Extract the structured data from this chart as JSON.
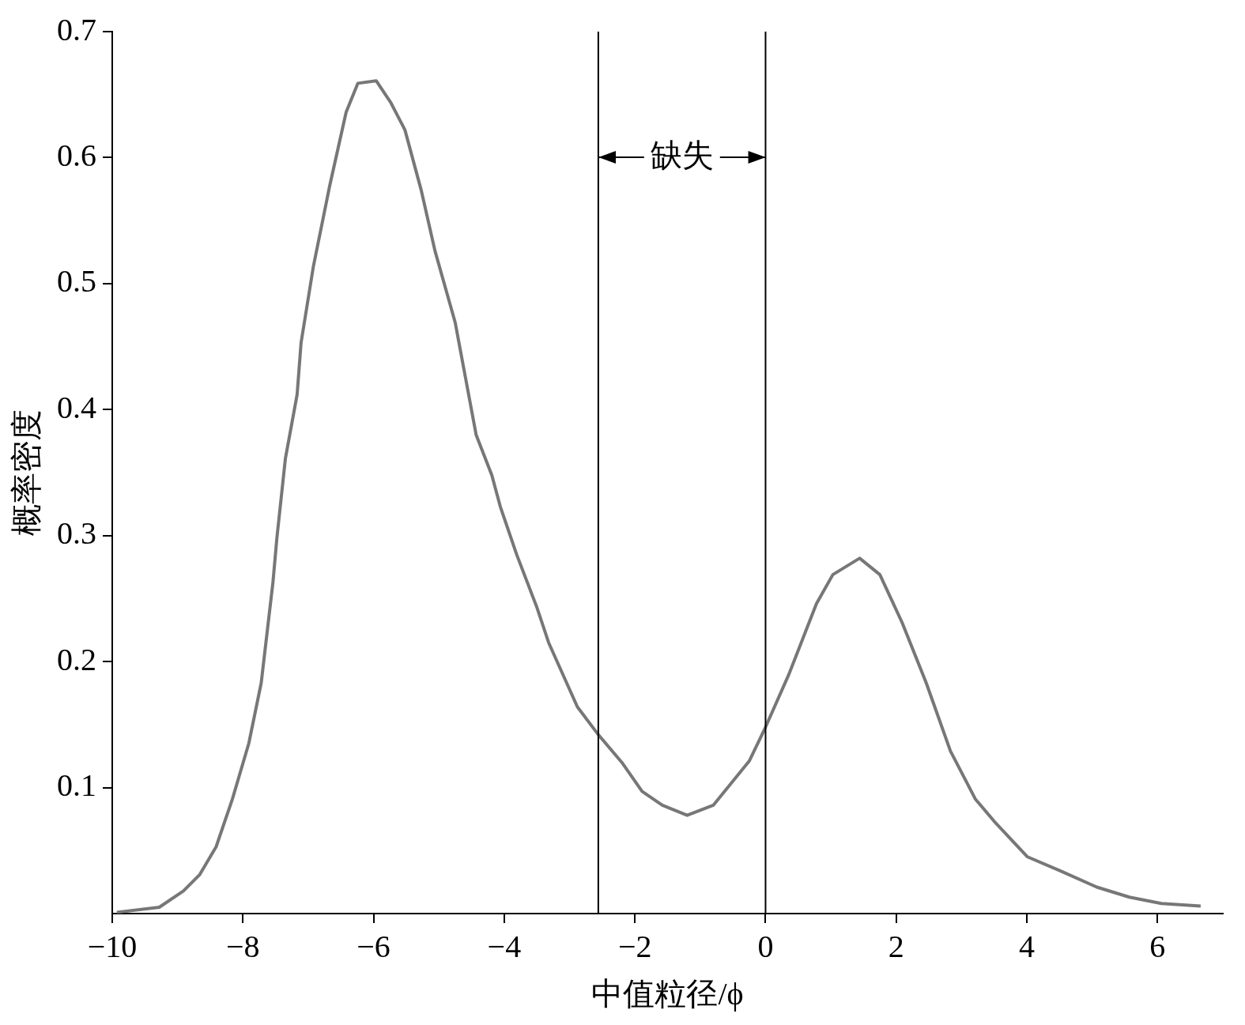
{
  "chart_data": {
    "type": "line",
    "xlabel": "中值粒径/ϕ",
    "ylabel": "概率密度",
    "xlim": [
      -10,
      7
    ],
    "xticks": [
      {
        "value": -10,
        "label": "−10"
      },
      {
        "value": -8,
        "label": "−8"
      },
      {
        "value": -6,
        "label": "−6"
      },
      {
        "value": -4,
        "label": "−4"
      },
      {
        "value": -2,
        "label": "−2"
      },
      0,
      2,
      4,
      6
    ],
    "ylim": [
      0,
      0.7
    ],
    "yticks": [
      0.1,
      0.2,
      0.3,
      0.4,
      0.5,
      0.6,
      0.7
    ],
    "grid": false,
    "legend": false,
    "marker": "none",
    "line_style": "solid",
    "series": [
      {
        "color": "#777777",
        "x": [
          -9.93,
          -9.28,
          -8.91,
          -8.66,
          -8.41,
          -8.16,
          -7.91,
          -7.72,
          -7.54,
          -7.48,
          -7.35,
          -7.17,
          -7.11,
          -6.92,
          -6.67,
          -6.42,
          -6.24,
          -5.96,
          -5.74,
          -5.52,
          -5.27,
          -5.06,
          -4.75,
          -4.43,
          -4.19,
          -4.06,
          -3.81,
          -3.5,
          -3.32,
          -2.88,
          -2.56,
          -2.2,
          -1.89,
          -1.58,
          -1.2,
          -0.8,
          -0.25,
          0,
          0.35,
          0.78,
          1.03,
          1.44,
          1.75,
          2.09,
          2.46,
          2.83,
          3.21,
          3.52,
          4.01,
          4.51,
          5.07,
          5.57,
          6.06,
          6.66
        ],
        "values": [
          0.001,
          0.005,
          0.018,
          0.031,
          0.053,
          0.091,
          0.135,
          0.183,
          0.263,
          0.298,
          0.361,
          0.412,
          0.453,
          0.514,
          0.578,
          0.636,
          0.659,
          0.661,
          0.644,
          0.622,
          0.574,
          0.526,
          0.469,
          0.38,
          0.348,
          0.323,
          0.285,
          0.243,
          0.215,
          0.164,
          0.142,
          0.12,
          0.097,
          0.086,
          0.078,
          0.086,
          0.121,
          0.148,
          0.189,
          0.246,
          0.269,
          0.282,
          0.269,
          0.231,
          0.183,
          0.129,
          0.091,
          0.072,
          0.045,
          0.034,
          0.021,
          0.013,
          0.008,
          0.006
        ]
      }
    ],
    "ref_lines": [
      {
        "axis": "x",
        "value": -2.56,
        "color": "#000000"
      },
      {
        "axis": "x",
        "value": 0,
        "color": "#000000"
      }
    ],
    "annotations": [
      {
        "text": "缺失",
        "x": -2.56,
        "y": 0.6
      }
    ]
  }
}
